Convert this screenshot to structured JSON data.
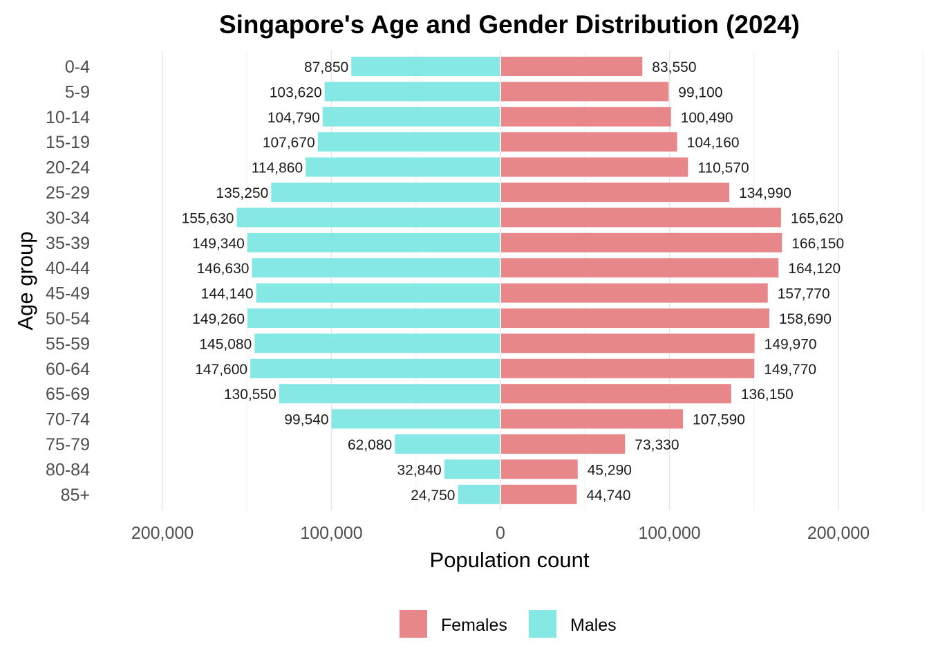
{
  "chart_data": {
    "type": "bar",
    "orientation": "horizontal",
    "title": "Singapore's Age and Gender Distribution (2024)",
    "xlabel": "Population count",
    "ylabel": "Age group",
    "categories": [
      "0-4",
      "5-9",
      "10-14",
      "15-19",
      "20-24",
      "25-29",
      "30-34",
      "35-39",
      "40-44",
      "45-49",
      "50-54",
      "55-59",
      "60-64",
      "65-69",
      "70-74",
      "75-79",
      "80-84",
      "85+"
    ],
    "series": [
      {
        "name": "Females",
        "side": "right",
        "color": "#E8878A",
        "values": [
          83550,
          99100,
          100490,
          104160,
          110570,
          134990,
          165620,
          166150,
          164120,
          157770,
          158690,
          149970,
          149770,
          136150,
          107590,
          73330,
          45290,
          44740
        ],
        "labels": [
          "83,550",
          "99,100",
          "100,490",
          "104,160",
          "110,570",
          "134,990",
          "165,620",
          "166,150",
          "164,120",
          "157,770",
          "158,690",
          "149,970",
          "149,770",
          "136,150",
          "107,590",
          "73,330",
          "45,290",
          "44,740"
        ]
      },
      {
        "name": "Males",
        "side": "left",
        "color": "#86E8E5",
        "values": [
          87850,
          103620,
          104790,
          107670,
          114860,
          135250,
          155630,
          149340,
          146630,
          144140,
          149260,
          145080,
          147600,
          130550,
          99540,
          62080,
          32840,
          24750
        ],
        "labels": [
          "87,850",
          "103,620",
          "104,790",
          "107,670",
          "114,860",
          "135,250",
          "155,630",
          "149,340",
          "146,630",
          "144,140",
          "149,260",
          "145,080",
          "147,600",
          "130,550",
          "99,540",
          "62,080",
          "32,840",
          "24,750"
        ]
      }
    ],
    "xlim": [
      -200000,
      200000
    ],
    "xticks": [
      -200000,
      -100000,
      0,
      100000,
      200000
    ],
    "xtick_labels": [
      "200,000",
      "100,000",
      "0",
      "100,000",
      "200,000"
    ],
    "grid": true,
    "legend": {
      "position": "bottom",
      "entries": [
        "Females",
        "Males"
      ]
    }
  }
}
